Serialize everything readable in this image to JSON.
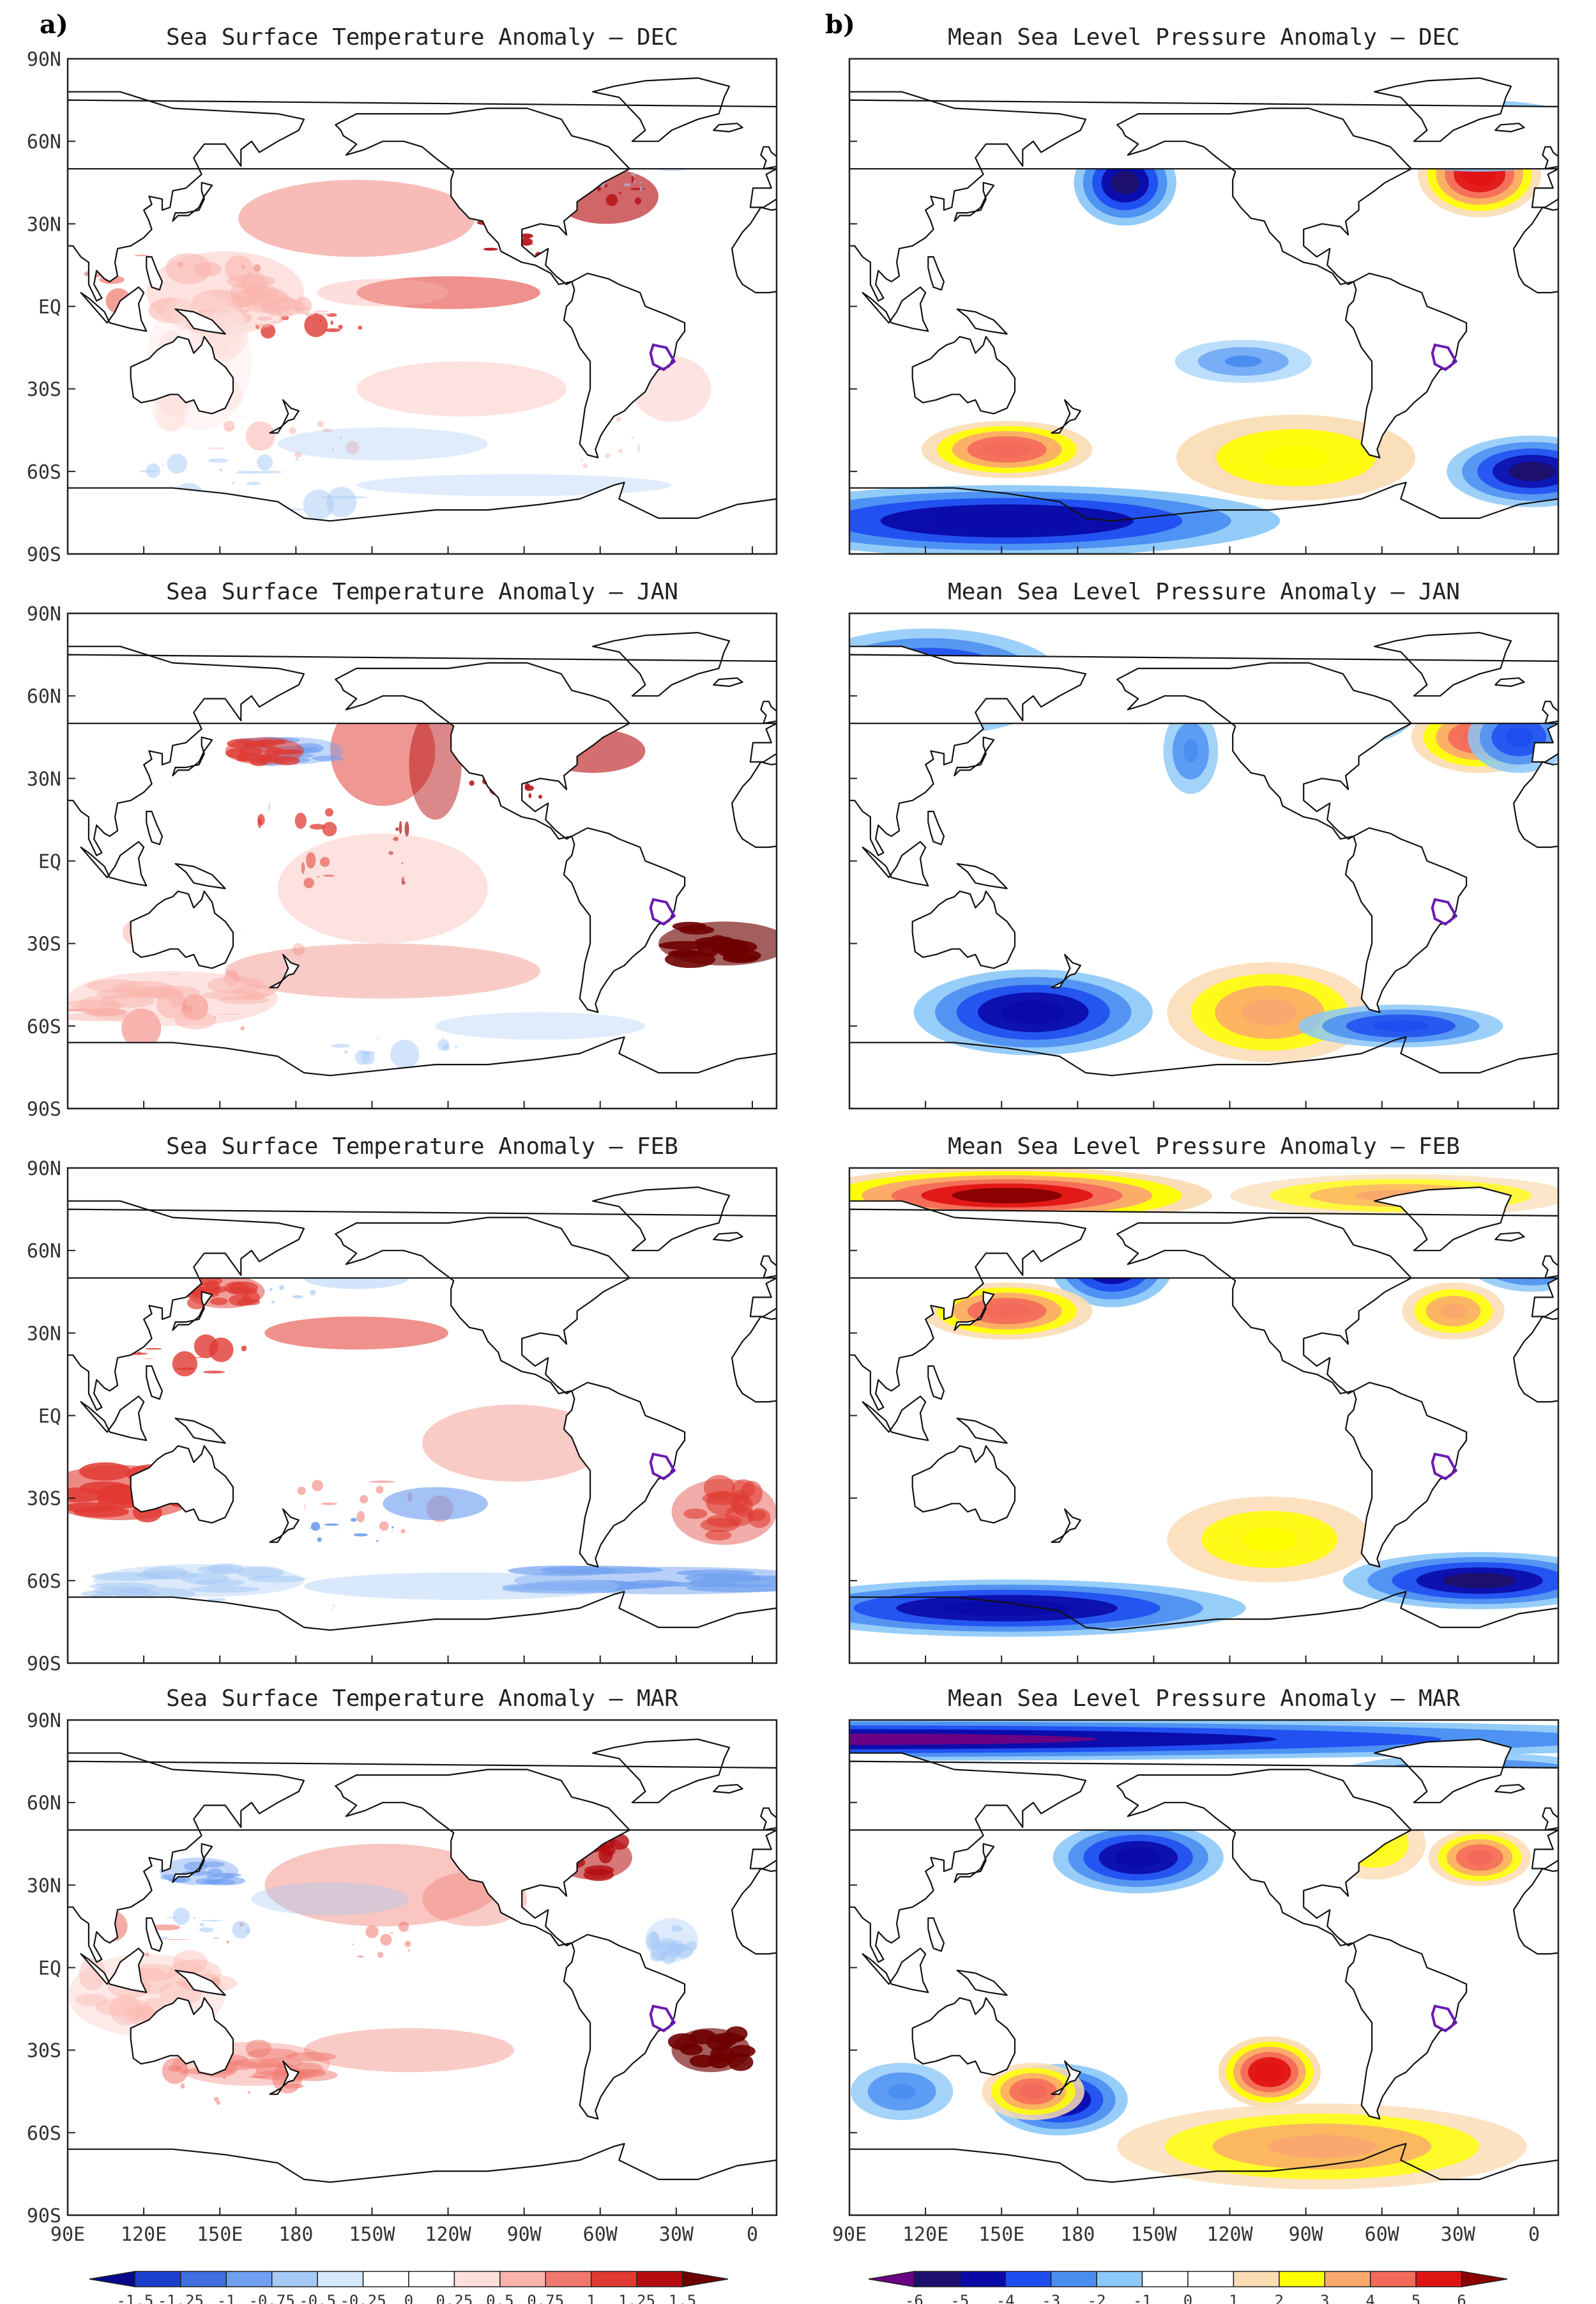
{
  "panel_letters": {
    "a": "a)",
    "b": "b)"
  },
  "sst_titles": [
    "Sea Surface Temperature Anomaly – DEC",
    "Sea Surface Temperature Anomaly – JAN",
    "Sea Surface Temperature Anomaly – FEB",
    "Sea Surface Temperature Anomaly – MAR"
  ],
  "mslp_titles": [
    "Mean Sea Level Pressure Anomaly – DEC",
    "Mean Sea Level Pressure Anomaly – JAN",
    "Mean Sea Level Pressure Anomaly – FEB",
    "Mean Sea Level Pressure Anomaly – MAR"
  ],
  "lat_labels": [
    "90N",
    "60N",
    "30N",
    "EQ",
    "30S",
    "60S",
    "90S"
  ],
  "lon_labels": [
    "90E",
    "120E",
    "150E",
    "180",
    "150W",
    "120W",
    "90W",
    "60W",
    "30W",
    "0"
  ],
  "sst_colorbar": {
    "labels": [
      "-1.5",
      "-1.25",
      "-1",
      "-0.75",
      "-0.5",
      "-0.25",
      "0",
      "0.25",
      "0.5",
      "0.75",
      "1",
      "1.25",
      "1.5"
    ],
    "colors": [
      "#08088c",
      "#1c3fd0",
      "#3f6fe0",
      "#6f9ff0",
      "#a5c9f5",
      "#d6e9fb",
      "#ffffff",
      "#ffffff",
      "#fde0dc",
      "#f9b3ab",
      "#f0776e",
      "#e03a32",
      "#b50c10",
      "#6e0000"
    ]
  },
  "mslp_colorbar": {
    "labels": [
      "-6",
      "-5",
      "-4",
      "-3",
      "-2",
      "-1",
      "0",
      "1",
      "2",
      "3",
      "4",
      "5",
      "6"
    ],
    "colors": [
      "#6a0082",
      "#1c0f6e",
      "#0a0aa8",
      "#1f4ef0",
      "#4b8ef2",
      "#8cc8f8",
      "#ffffff",
      "#ffffff",
      "#fadcb4",
      "#ffff00",
      "#fba86f",
      "#f46a5a",
      "#e01414",
      "#8b0000"
    ]
  }
}
